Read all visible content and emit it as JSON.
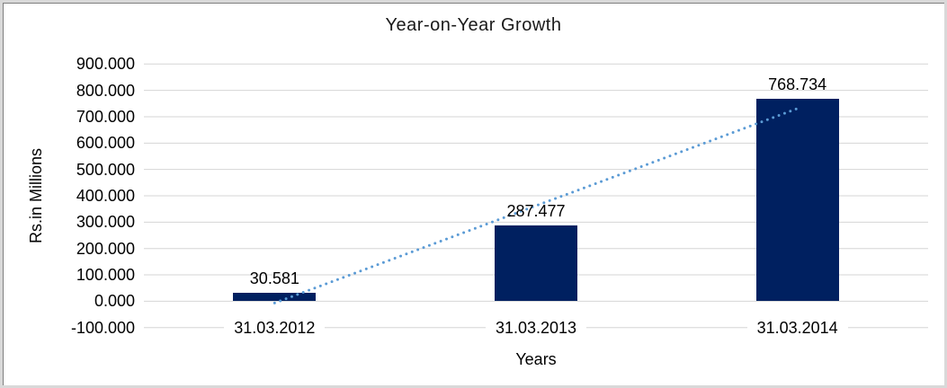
{
  "chart_data": {
    "type": "bar",
    "title": "Year-on-Year Growth",
    "xlabel": "Years",
    "ylabel": "Rs.in Millions",
    "categories": [
      "31.03.2012",
      "31.03.2013",
      "31.03.2014"
    ],
    "values": [
      30.581,
      287.477,
      768.734
    ],
    "value_labels": [
      "30.581",
      "287.477",
      "768.734"
    ],
    "ylim": [
      -100,
      900
    ],
    "ytick_step": 100,
    "ytick_labels": [
      "900.000",
      "800.000",
      "700.000",
      "600.000",
      "500.000",
      "400.000",
      "300.000",
      "200.000",
      "100.000",
      "0.000",
      "-100.000"
    ],
    "grid": true,
    "legend": "none",
    "bar_color": "#002060",
    "gridline_color": "#d6d6d6",
    "trendline": {
      "type": "linear",
      "style": "dotted",
      "color": "#5b9bd5"
    }
  }
}
